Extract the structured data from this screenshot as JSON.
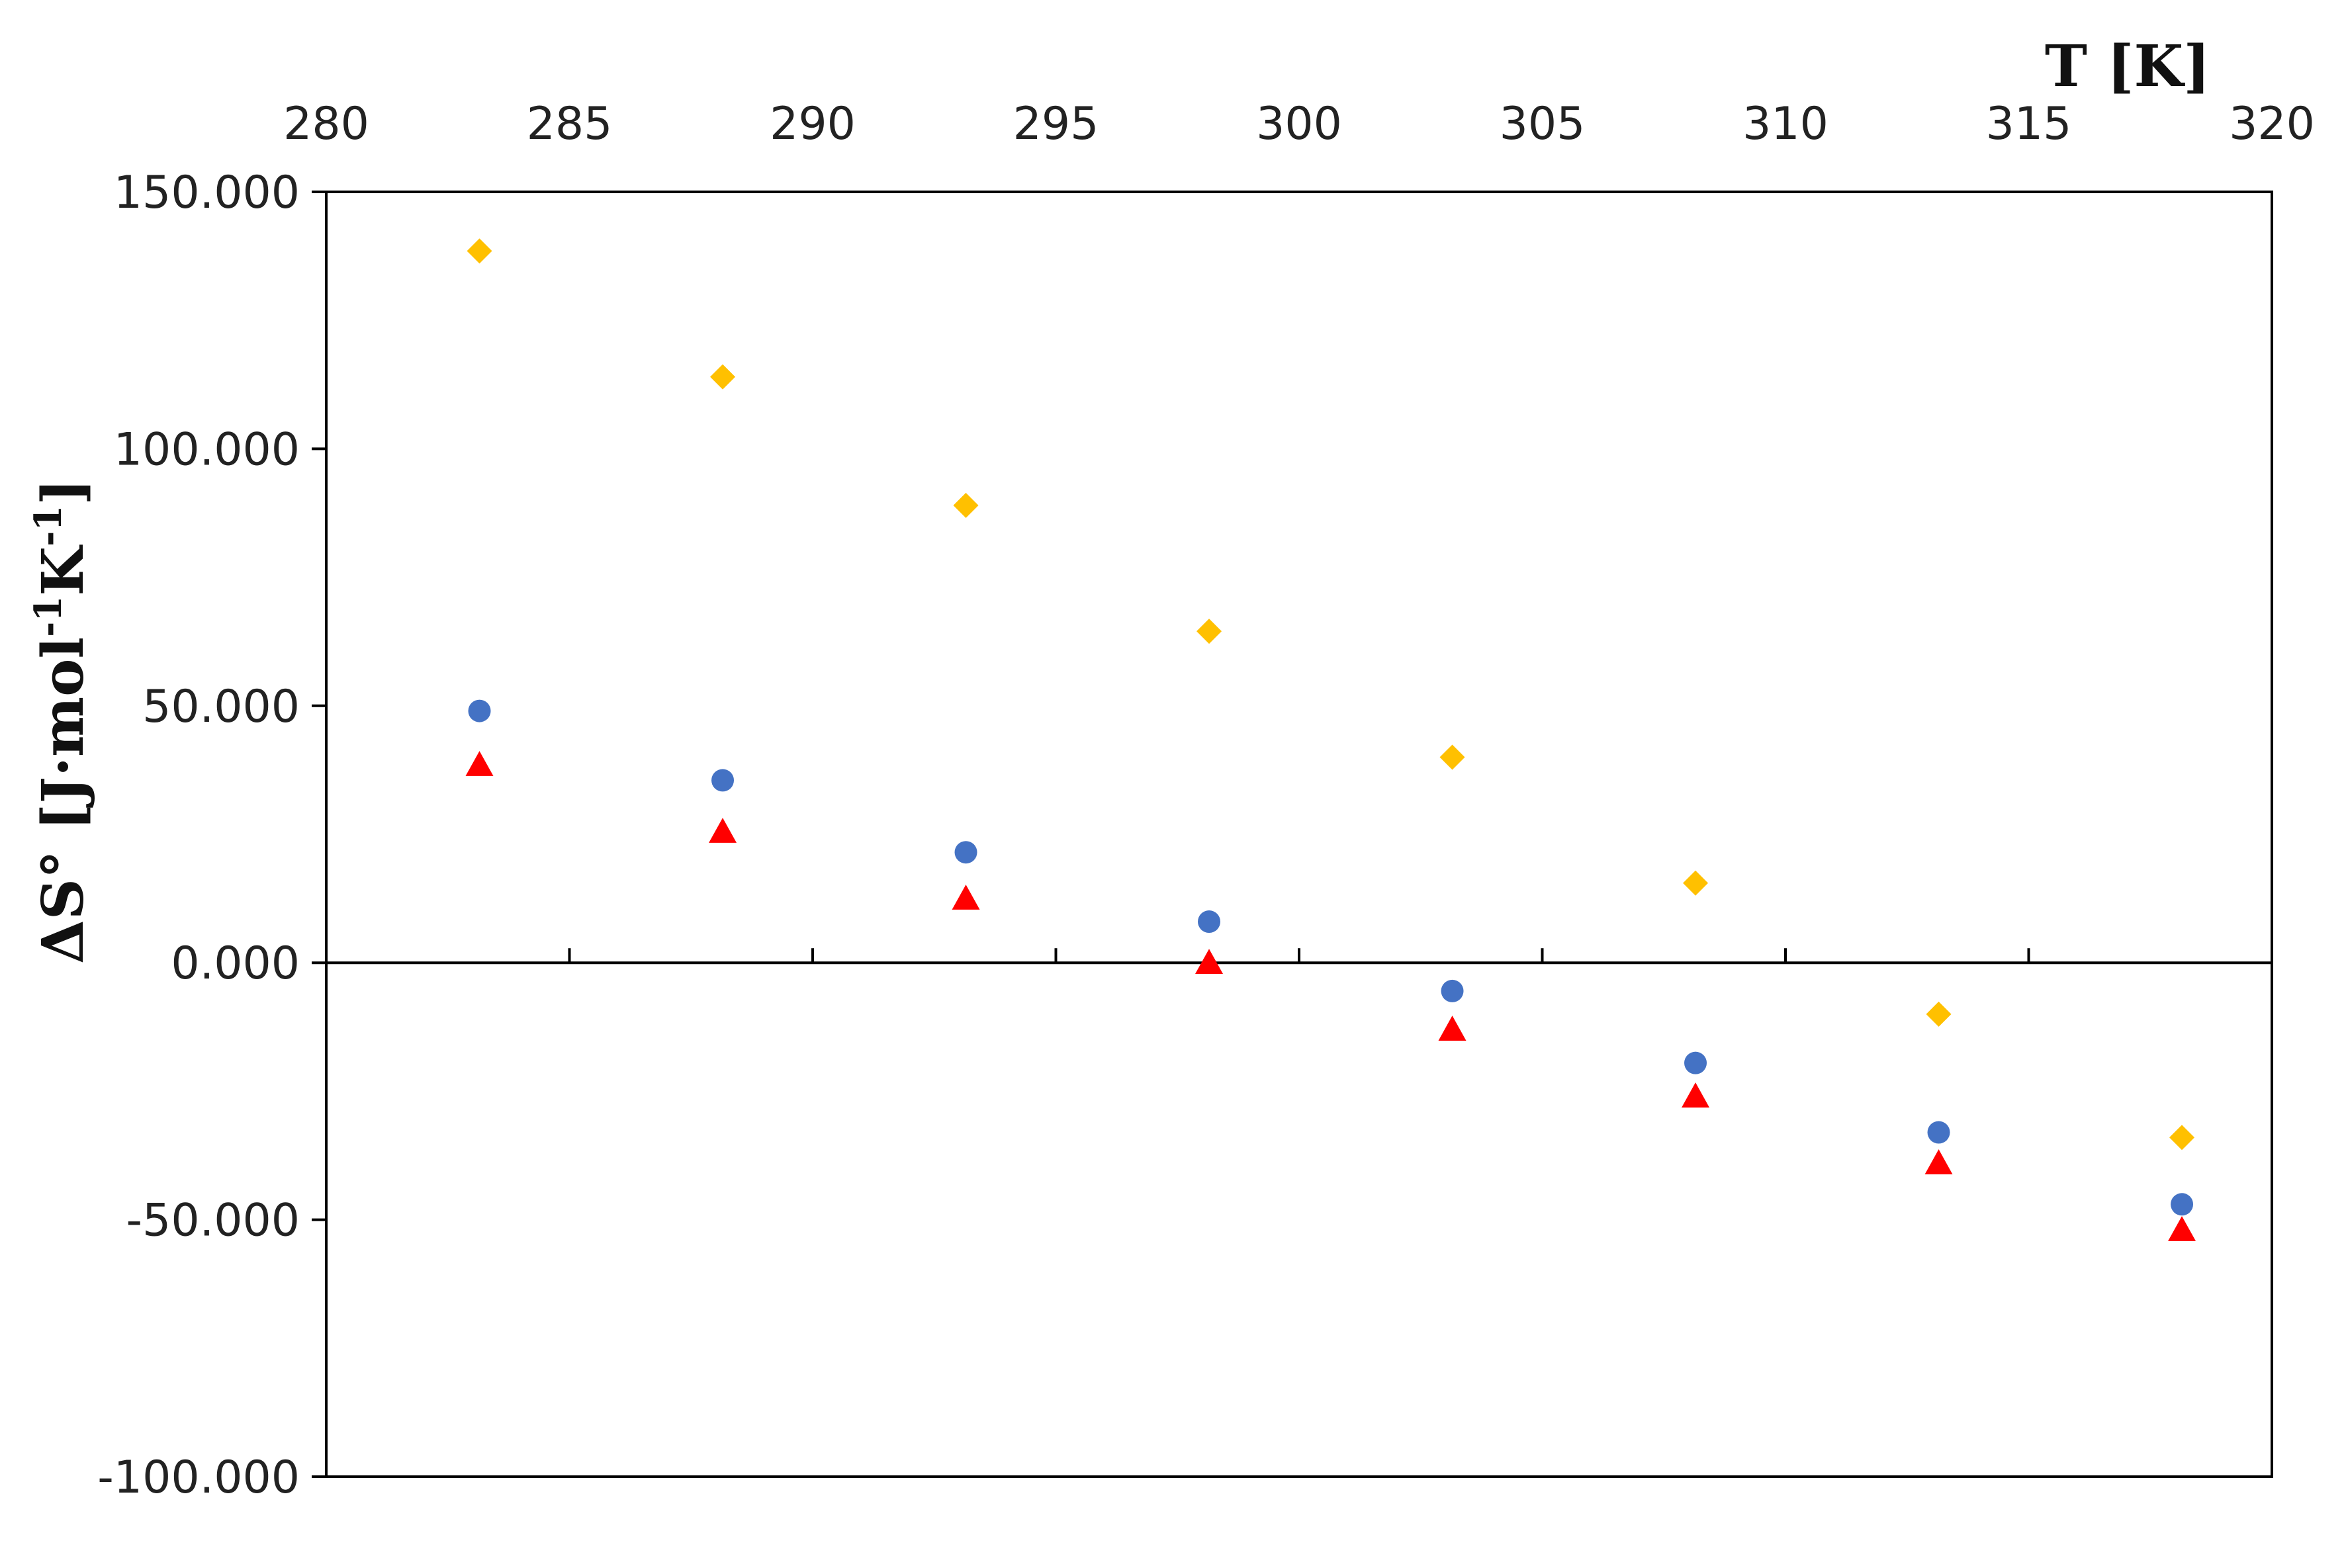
{
  "chart_data": {
    "type": "scatter",
    "title": "",
    "xlabel": "T [K]",
    "ylabel": {
      "main": "ΔS° [J·mol",
      "sup1": "-1",
      "mid": "K",
      "sup2": "-1",
      "end": "]"
    },
    "xlim": [
      280,
      320
    ],
    "ylim": [
      -100,
      150
    ],
    "x_axis_position": "top",
    "x_ticks": [
      280,
      285,
      290,
      295,
      300,
      305,
      310,
      315,
      320
    ],
    "x_tick_labels": [
      "280",
      "285",
      "290",
      "295",
      "300",
      "305",
      "310",
      "315",
      "320"
    ],
    "y_ticks": [
      150,
      100,
      50,
      0,
      -50,
      -100
    ],
    "y_tick_labels": [
      "150.000",
      "100.000",
      "50.000",
      "0.000",
      "-50.000",
      "-100.000"
    ],
    "grid": false,
    "legend": "none",
    "series": [
      {
        "marker": "diamond",
        "color": "#FFC000",
        "x": [
          283.15,
          288.15,
          293.15,
          298.15,
          303.15,
          308.15,
          313.15,
          318.15
        ],
        "y": [
          138.5,
          114,
          89,
          64.5,
          40,
          15.5,
          -10,
          -34
        ]
      },
      {
        "marker": "circle",
        "color": "#4472C4",
        "x": [
          283.15,
          288.15,
          293.15,
          298.15,
          303.15,
          308.15,
          313.15,
          318.15
        ],
        "y": [
          49,
          35.5,
          21.5,
          8,
          -5.5,
          -19.5,
          -33,
          -47
        ]
      },
      {
        "marker": "triangle",
        "color": "#FF0000",
        "x": [
          283.15,
          288.15,
          293.15,
          298.15,
          303.15,
          308.15,
          313.15,
          318.15
        ],
        "y": [
          38.5,
          25.5,
          12.5,
          0,
          -13,
          -26,
          -39,
          -52
        ]
      }
    ]
  }
}
